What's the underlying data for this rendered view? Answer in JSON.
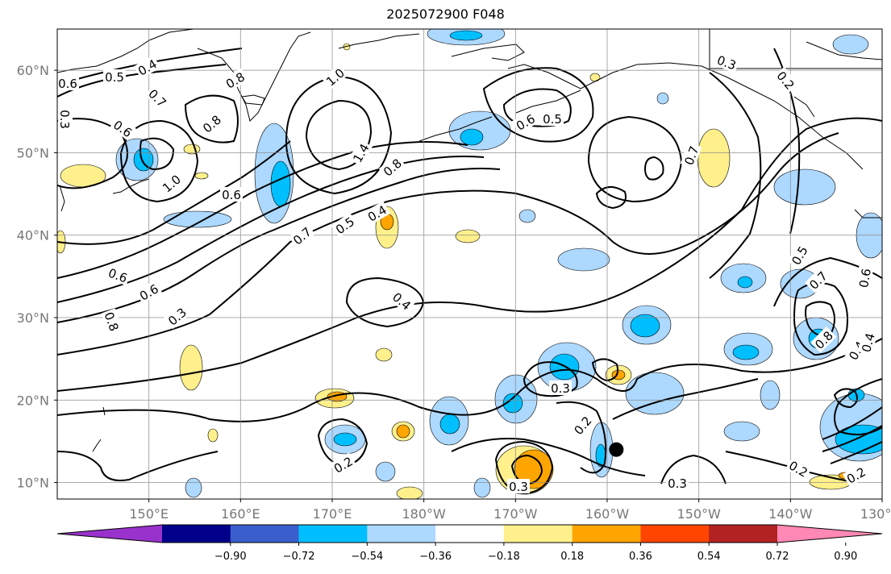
{
  "title": "2025072900 F048",
  "map": {
    "lon_range": [
      140,
      230
    ],
    "lat_range": [
      8,
      65
    ],
    "lat_ticks": [
      {
        "value": 10,
        "label": "10°N"
      },
      {
        "value": 20,
        "label": "20°N"
      },
      {
        "value": 30,
        "label": "30°N"
      },
      {
        "value": 40,
        "label": "40°N"
      },
      {
        "value": 50,
        "label": "50°N"
      },
      {
        "value": 60,
        "label": "60°N"
      }
    ],
    "lon_ticks": [
      {
        "value": 150,
        "label": "150°E"
      },
      {
        "value": 160,
        "label": "160°E"
      },
      {
        "value": 170,
        "label": "170°E"
      },
      {
        "value": 180,
        "label": "180°W"
      },
      {
        "value": 190,
        "label": "170°W"
      },
      {
        "value": 200,
        "label": "160°W"
      },
      {
        "value": 210,
        "label": "150°W"
      },
      {
        "value": 220,
        "label": "140°W"
      },
      {
        "value": 230,
        "label": "130°W"
      }
    ],
    "marker": {
      "lon": 201,
      "lat": 14,
      "color": "#000000"
    },
    "contour_labels": [
      "0.6",
      "0.5",
      "0.4",
      "0.7",
      "0.8",
      "0.6",
      "0.8",
      "1.0",
      "0.6",
      "1.0",
      "1.4",
      "0.8",
      "0.4",
      "0.5",
      "0.7",
      "0.6",
      "0.6",
      "0.3",
      "0.8",
      "0.4",
      "0.4",
      "0.3",
      "0.2",
      "0.2",
      "0.3",
      "0.3",
      "0.5",
      "0.6",
      "0.3",
      "0.2",
      "0.7",
      "0.5",
      "0.7",
      "0.8",
      "0.4",
      "0.2",
      "0.2",
      "0.3",
      "0.6"
    ]
  },
  "colorbar": {
    "colors": [
      "#9932cc",
      "#00008b",
      "#3a5fcd",
      "#00bfff",
      "#add8ff",
      "#ffffff",
      "#fff08c",
      "#ffa500",
      "#ff4500",
      "#b22222",
      "#ff89b4"
    ],
    "tick_labels": [
      "−0.90",
      "−0.72",
      "−0.54",
      "−0.36",
      "−0.18",
      "0.18",
      "0.36",
      "0.54",
      "0.72",
      "0.90"
    ]
  }
}
